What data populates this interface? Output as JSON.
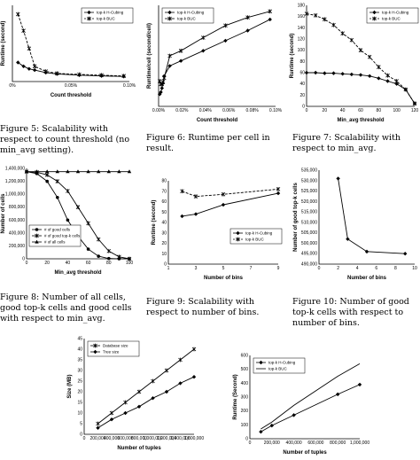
{
  "captions": {
    "fig5": "Figure 5: Scalability with respect to count threshold (no min_avg setting).",
    "fig6": "Figure 6: Runtime per cell in result.",
    "fig7": "Figure 7: Scalability with respect to min_avg.",
    "fig8": "Figure 8: Number of all cells, good top-k cells and good cells with respect to min_avg.",
    "fig9": "Figure 9: Scalability with respect to number of bins.",
    "fig10": "Figure 10: Number of good top-k cells with respect to number of bins."
  },
  "chart_data": [
    {
      "id": "fig5",
      "type": "line",
      "xlabel": "Count threshold",
      "ylabel": "Runtime (second)",
      "x_ticks": [
        "0%",
        "0.05%",
        "0.10%"
      ],
      "y_ticks": [],
      "x": [
        0.0005,
        0.001,
        0.0015,
        0.002,
        0.003,
        0.004,
        0.006,
        0.008,
        0.01
      ],
      "xlim": [
        0,
        0.0105
      ],
      "ylim": [
        0,
        300
      ],
      "legend": "top-right",
      "series": [
        {
          "name": "top-k H-Cubing",
          "values": [
            75,
            60,
            50,
            45,
            35,
            30,
            25,
            22,
            20
          ],
          "color": "#000000",
          "marker": "diamond",
          "dash": false
        },
        {
          "name": "top-k BUC",
          "values": [
            265,
            200,
            130,
            60,
            40,
            32,
            28,
            25,
            22
          ],
          "color": "#000000",
          "marker": "star",
          "dash": true
        }
      ]
    },
    {
      "id": "fig6",
      "type": "line",
      "xlabel": "Count threshold",
      "ylabel": "Runtime/cell (second/cell)",
      "x_ticks": [
        "0.00%",
        "0.02%",
        "0.04%",
        "0.06%",
        "0.08%",
        "0.10%"
      ],
      "y_ticks": [],
      "x": [
        0.0001,
        0.0002,
        0.0003,
        0.0004,
        0.0005,
        0.001,
        0.002,
        0.004,
        0.006,
        0.008,
        0.01
      ],
      "xlim": [
        0,
        0.0105
      ],
      "ylim": [
        0,
        100
      ],
      "legend": "top-left",
      "series": [
        {
          "name": "top-k H-Cubing",
          "values": [
            12,
            14,
            18,
            23,
            30,
            40,
            45,
            55,
            65,
            75,
            86
          ],
          "color": "#000000",
          "marker": "diamond",
          "dash": false
        },
        {
          "name": "top-k BUC",
          "values": [
            25,
            22,
            22,
            24,
            28,
            50,
            55,
            68,
            80,
            88,
            94
          ],
          "color": "#000000",
          "marker": "star",
          "dash": false
        }
      ]
    },
    {
      "id": "fig7",
      "type": "line",
      "xlabel": "Min_avg threshold",
      "ylabel": "Runtime (second)",
      "x_ticks": [
        "0",
        "20",
        "40",
        "60",
        "80",
        "100",
        "120"
      ],
      "y_ticks": [
        "0",
        "20",
        "40",
        "60",
        "80",
        "100",
        "120",
        "140",
        "160",
        "180"
      ],
      "x": [
        0,
        10,
        20,
        30,
        40,
        50,
        60,
        70,
        80,
        90,
        100,
        110,
        120
      ],
      "xlim": [
        0,
        120
      ],
      "ylim": [
        0,
        180
      ],
      "legend": "top-right",
      "series": [
        {
          "name": "top-k H-Cubing",
          "values": [
            60,
            60,
            59,
            59,
            58,
            57,
            56,
            54,
            50,
            45,
            40,
            30,
            5
          ],
          "color": "#000000",
          "marker": "diamond",
          "dash": false
        },
        {
          "name": "top-k BUC",
          "values": [
            165,
            162,
            155,
            145,
            130,
            118,
            100,
            88,
            70,
            55,
            45,
            30,
            5
          ],
          "color": "#000000",
          "marker": "star",
          "dash": true
        }
      ]
    },
    {
      "id": "fig8",
      "type": "line",
      "xlabel": "Min_avg threshold",
      "ylabel": "Number of cells",
      "x_ticks": [
        "0",
        "20",
        "40",
        "60",
        "80",
        "100"
      ],
      "y_ticks": [
        "0",
        "200,000",
        "400,000",
        "600,000",
        "800,000",
        "1,000,000",
        "1,200,000",
        "1,400,000"
      ],
      "x": [
        0,
        10,
        20,
        30,
        40,
        50,
        60,
        70,
        80,
        90,
        100
      ],
      "xlim": [
        0,
        100
      ],
      "ylim": [
        0,
        1400000
      ],
      "legend": "bottom-left",
      "series": [
        {
          "name": "# of good cells",
          "values": [
            1350000,
            1320000,
            1200000,
            950000,
            600000,
            350000,
            150000,
            40000,
            5000,
            0,
            0
          ],
          "color": "#000000",
          "marker": "circle",
          "dash": false
        },
        {
          "name": "# of good top-k cells",
          "values": [
            1350000,
            1340000,
            1300000,
            1200000,
            1050000,
            800000,
            550000,
            300000,
            120000,
            30000,
            0
          ],
          "color": "#000000",
          "marker": "star",
          "dash": false
        },
        {
          "name": "# of all cells",
          "values": [
            1350000,
            1350000,
            1350000,
            1350000,
            1350000,
            1350000,
            1350000,
            1350000,
            1350000,
            1350000,
            1350000
          ],
          "color": "#000000",
          "marker": "triangle",
          "dash": false
        }
      ]
    },
    {
      "id": "fig9",
      "type": "line",
      "xlabel": "Number of bins",
      "ylabel": "Runtime (second)",
      "x_ticks": [
        "1",
        "3",
        "5",
        "7",
        "9"
      ],
      "y_ticks": [
        "0",
        "10",
        "20",
        "30",
        "40",
        "50",
        "60",
        "70",
        "80"
      ],
      "x": [
        2,
        3,
        5,
        9
      ],
      "xlim": [
        1,
        9
      ],
      "ylim": [
        0,
        80
      ],
      "legend": "bottom-right",
      "series": [
        {
          "name": "top-k H-Cubing",
          "values": [
            46,
            48,
            57,
            68
          ],
          "color": "#000000",
          "marker": "diamond",
          "dash": false
        },
        {
          "name": "top-k BUC",
          "values": [
            70,
            65,
            67,
            72
          ],
          "color": "#000000",
          "marker": "star",
          "dash": true
        }
      ]
    },
    {
      "id": "fig10",
      "type": "line",
      "xlabel": "Number of bins",
      "ylabel": "Number of good top-k cells",
      "x_ticks": [
        "0",
        "2",
        "4",
        "6",
        "8",
        "10"
      ],
      "y_ticks": [
        "490,000",
        "495,000",
        "500,000",
        "505,000",
        "510,000",
        "515,000",
        "520,000",
        "525,000",
        "530,000",
        "535,000"
      ],
      "x": [
        2,
        3,
        5,
        9
      ],
      "xlim": [
        0,
        10
      ],
      "ylim": [
        490000,
        535000
      ],
      "legend": "none",
      "series": [
        {
          "name": "",
          "values": [
            531000,
            502000,
            496000,
            495000
          ],
          "color": "#000000",
          "marker": "diamond",
          "dash": false
        }
      ]
    },
    {
      "id": "fig11",
      "type": "line",
      "xlabel": "Number of tuples",
      "ylabel": "Size (MB)",
      "x_ticks": [
        "0",
        "200,000",
        "400,000",
        "600,000",
        "800,000",
        "1,000,000",
        "1,200,000",
        "1,400,000",
        "1,600,000"
      ],
      "y_ticks": [
        "0",
        "5",
        "10",
        "15",
        "20",
        "25",
        "30",
        "35",
        "40",
        "45"
      ],
      "x": [
        200000,
        400000,
        600000,
        800000,
        1000000,
        1200000,
        1400000,
        1600000
      ],
      "xlim": [
        0,
        1600000
      ],
      "ylim": [
        0,
        45
      ],
      "legend": "top-left",
      "series": [
        {
          "name": "Database size",
          "values": [
            5,
            10,
            15,
            20,
            25,
            30,
            35,
            40
          ],
          "color": "#000000",
          "marker": "star",
          "dash": false
        },
        {
          "name": "Tree size",
          "values": [
            3,
            7,
            10,
            13,
            17,
            20,
            24,
            27
          ],
          "color": "#000000",
          "marker": "diamond",
          "dash": false
        }
      ]
    },
    {
      "id": "fig12",
      "type": "line",
      "xlabel": "Number of tuples",
      "ylabel": "Runtime (Second)",
      "x_ticks": [
        "0",
        "200,000",
        "400,000",
        "600,000",
        "800,000",
        "1,000,000"
      ],
      "y_ticks": [
        "0",
        "100",
        "200",
        "300",
        "400",
        "500",
        "600"
      ],
      "x": [
        100000,
        200000,
        400000,
        800000,
        1000000
      ],
      "xlim": [
        0,
        1000000
      ],
      "ylim": [
        0,
        600
      ],
      "legend": "top-left",
      "series": [
        {
          "name": "top-k H-Cubing",
          "values": [
            50,
            95,
            170,
            320,
            390
          ],
          "color": "#000000",
          "marker": "diamond",
          "dash": false
        },
        {
          "name": "top-k BUC",
          "values": [
            70,
            120,
            240,
            450,
            540
          ],
          "color": "#000000",
          "marker": "none",
          "dash": false
        }
      ]
    }
  ]
}
